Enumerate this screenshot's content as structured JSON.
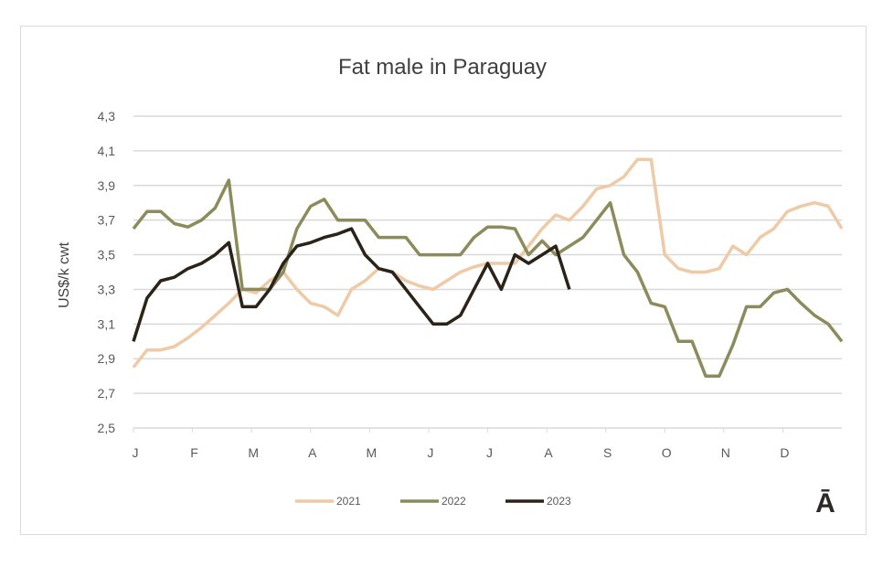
{
  "chart_data": {
    "type": "line",
    "title": "Fat male in Paraguay",
    "xlabel": "",
    "ylabel": "US$/k cwt",
    "x_tick_labels": [
      "J",
      "F",
      "M",
      "A",
      "M",
      "J",
      "J",
      "A",
      "S",
      "O",
      "N",
      "D"
    ],
    "y_ticks": [
      "2,5",
      "2,7",
      "2,9",
      "3,1",
      "3,3",
      "3,5",
      "3,7",
      "3,9",
      "4,1",
      "4,3"
    ],
    "ylim": [
      2.5,
      4.3
    ],
    "grid": true,
    "legend": "bottom",
    "series": [
      {
        "name": "2021",
        "color": "#eecaa6",
        "values": [
          2.85,
          2.95,
          2.95,
          2.97,
          3.02,
          3.08,
          3.15,
          3.22,
          3.3,
          3.28,
          3.35,
          3.4,
          3.3,
          3.22,
          3.2,
          3.15,
          3.3,
          3.35,
          3.42,
          3.4,
          3.35,
          3.32,
          3.3,
          3.35,
          3.4,
          3.43,
          3.45,
          3.45,
          3.45,
          3.55,
          3.65,
          3.73,
          3.7,
          3.78,
          3.88,
          3.9,
          3.95,
          4.05,
          4.05,
          3.5,
          3.42,
          3.4,
          3.4,
          3.42,
          3.55,
          3.5,
          3.6,
          3.65,
          3.75,
          3.78,
          3.8,
          3.78,
          3.65
        ]
      },
      {
        "name": "2022",
        "color": "#8b8b5c",
        "values": [
          3.65,
          3.75,
          3.75,
          3.68,
          3.66,
          3.7,
          3.77,
          3.93,
          3.3,
          3.3,
          3.3,
          3.4,
          3.65,
          3.78,
          3.82,
          3.7,
          3.7,
          3.7,
          3.6,
          3.6,
          3.6,
          3.5,
          3.5,
          3.5,
          3.5,
          3.6,
          3.66,
          3.66,
          3.65,
          3.5,
          3.58,
          3.5,
          3.55,
          3.6,
          3.7,
          3.8,
          3.5,
          3.4,
          3.22,
          3.2,
          3.0,
          3.0,
          2.8,
          2.8,
          2.98,
          3.2,
          3.2,
          3.28,
          3.3,
          3.22,
          3.15,
          3.1,
          3.0
        ]
      },
      {
        "name": "2023",
        "color": "#2b2218",
        "values": [
          3.0,
          3.25,
          3.35,
          3.37,
          3.42,
          3.45,
          3.5,
          3.57,
          3.2,
          3.2,
          3.3,
          3.45,
          3.55,
          3.57,
          3.6,
          3.62,
          3.65,
          3.5,
          3.42,
          3.4,
          3.3,
          3.2,
          3.1,
          3.1,
          3.15,
          3.3,
          3.45,
          3.3,
          3.5,
          3.45,
          3.5,
          3.55,
          3.3
        ]
      }
    ]
  },
  "logo_text": "Ā"
}
